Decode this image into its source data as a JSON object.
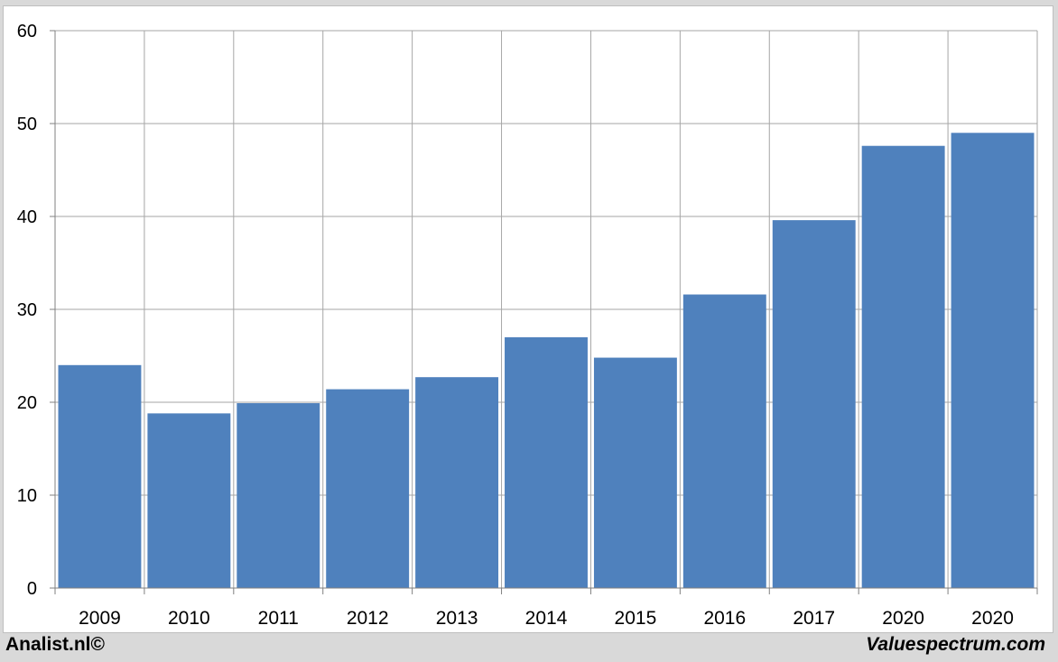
{
  "chart_data": {
    "type": "bar",
    "categories": [
      "2009",
      "2010",
      "2011",
      "2012",
      "2013",
      "2014",
      "2015",
      "2016",
      "2017",
      "2020",
      "2020"
    ],
    "values": [
      24.0,
      18.8,
      19.9,
      21.4,
      22.7,
      27.0,
      24.8,
      31.6,
      39.6,
      47.6,
      49.0
    ],
    "title": "",
    "xlabel": "",
    "ylabel": "",
    "ylim": [
      0,
      60
    ],
    "yticks": [
      "0",
      "10",
      "20",
      "30",
      "40",
      "50",
      "60"
    ],
    "grid": true,
    "bar_color": "#4f81bd",
    "grid_color": "#a6a6a6"
  },
  "footer": {
    "left_text": "Analist.nl©",
    "right_text": "Valuespectrum.com"
  }
}
